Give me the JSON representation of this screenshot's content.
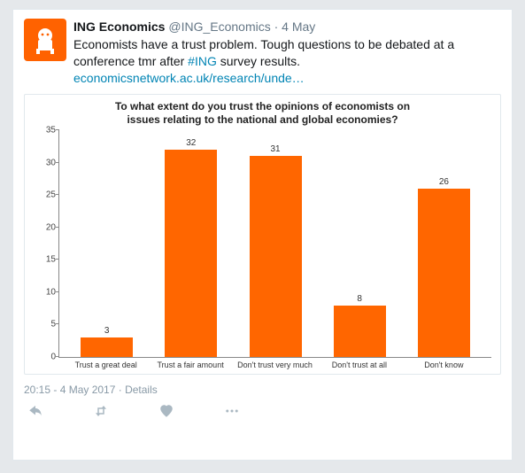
{
  "tweet": {
    "display_name": "ING Economics",
    "handle": "@ING_Economics",
    "date": "4 May",
    "text_before": "Economists have a trust problem. Tough questions to be debated at a conference tmr after ",
    "hashtag": "#ING",
    "text_after": " survey results.",
    "link": "economicsnetwork.ac.uk/research/unde…",
    "timestamp": "20:15 - 4 May 2017",
    "details_label": "· Details"
  },
  "chart": {
    "type": "bar",
    "title_line1": "To what extent do you trust the opinions of economists on",
    "title_line2": "issues relating to the national and global economies?",
    "categories": [
      "Trust a great deal",
      "Trust a fair amount",
      "Don't trust very much",
      "Don't trust at all",
      "Don't know"
    ],
    "values": [
      3,
      32,
      31,
      8,
      26
    ],
    "bar_color": "#ff6600",
    "background_color": "#ffffff",
    "axis_color": "#888888",
    "text_color": "#333333",
    "ylim": [
      0,
      35
    ],
    "ytick_step": 5,
    "title_fontsize": 12,
    "label_fontsize": 9,
    "value_fontsize": 10,
    "bar_width": 0.62
  },
  "brand": {
    "avatar_bg": "#ff6200",
    "lion_color": "#ffffff"
  },
  "tick_labels": [
    "0",
    "5",
    "10",
    "15",
    "20",
    "25",
    "30",
    "35"
  ]
}
